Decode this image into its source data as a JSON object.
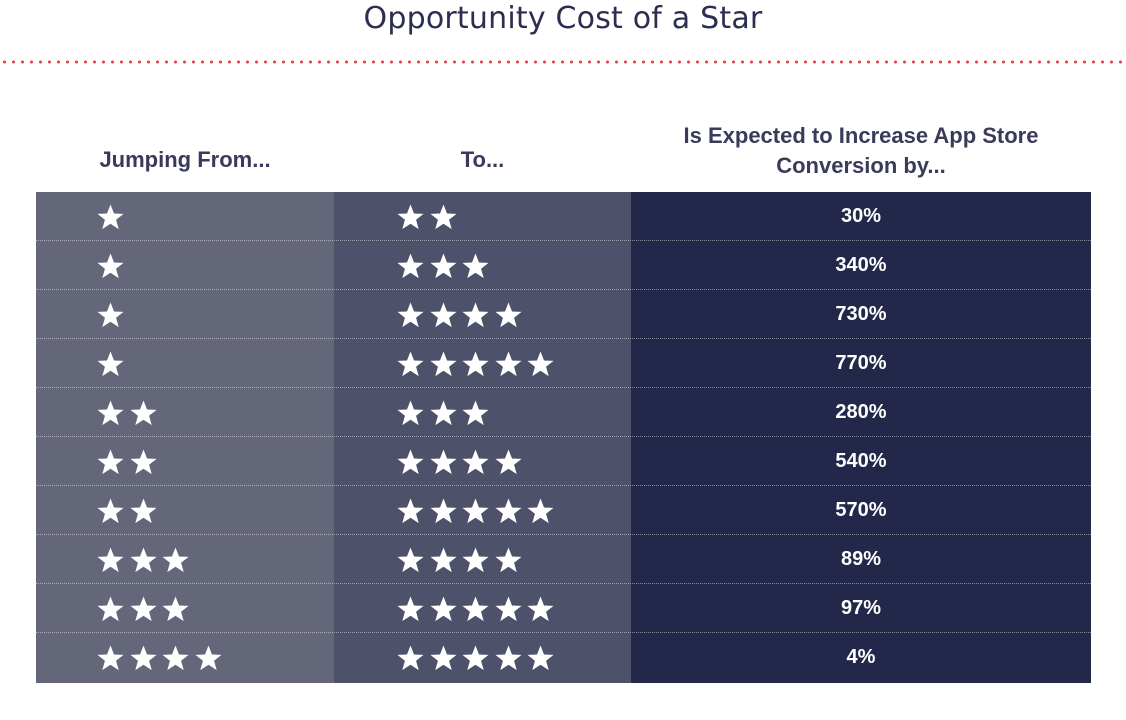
{
  "title": "Opportunity Cost of a Star",
  "colors": {
    "title_text": "#2c2d4f",
    "divider_dots": "#e4454a",
    "header_text": "#3a3b5a",
    "from_column": "#646779",
    "to_column": "#4d516a",
    "conversion_column": "#23284a",
    "star": "#ffffff"
  },
  "chart_data": {
    "type": "table",
    "columns": [
      "Jumping From...",
      "To...",
      "Is Expected to Increase App Store Conversion by..."
    ],
    "star_icon": "star-icon",
    "rows": [
      {
        "from_stars": 1,
        "to_stars": 2,
        "increase": "30%"
      },
      {
        "from_stars": 1,
        "to_stars": 3,
        "increase": "340%"
      },
      {
        "from_stars": 1,
        "to_stars": 4,
        "increase": "730%"
      },
      {
        "from_stars": 1,
        "to_stars": 5,
        "increase": "770%"
      },
      {
        "from_stars": 2,
        "to_stars": 3,
        "increase": "280%"
      },
      {
        "from_stars": 2,
        "to_stars": 4,
        "increase": "540%"
      },
      {
        "from_stars": 2,
        "to_stars": 5,
        "increase": "570%"
      },
      {
        "from_stars": 3,
        "to_stars": 4,
        "increase": "89%"
      },
      {
        "from_stars": 3,
        "to_stars": 5,
        "increase": "97%"
      },
      {
        "from_stars": 4,
        "to_stars": 5,
        "increase": "4%"
      }
    ]
  }
}
